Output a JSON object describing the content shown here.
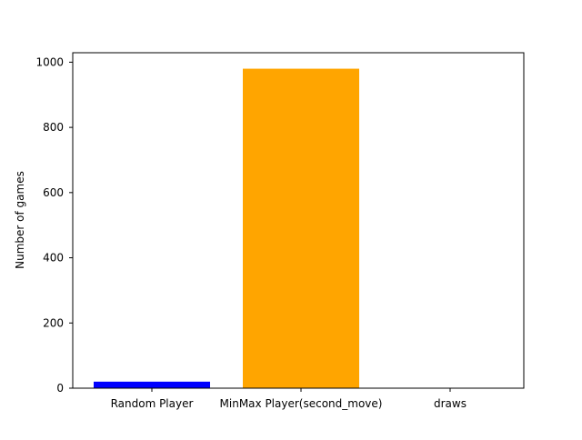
{
  "chart_data": {
    "type": "bar",
    "categories": [
      "Random Player",
      "MinMax Player(second_move)",
      "draws"
    ],
    "values": [
      20,
      980,
      0
    ],
    "colors": [
      "#0000ff",
      "#ffa500",
      "#008000"
    ],
    "title": "",
    "xlabel": "",
    "ylabel": "Number of games",
    "ylim": [
      0,
      1029
    ],
    "yticks": [
      0,
      200,
      400,
      600,
      800,
      1000
    ],
    "grid": false
  }
}
